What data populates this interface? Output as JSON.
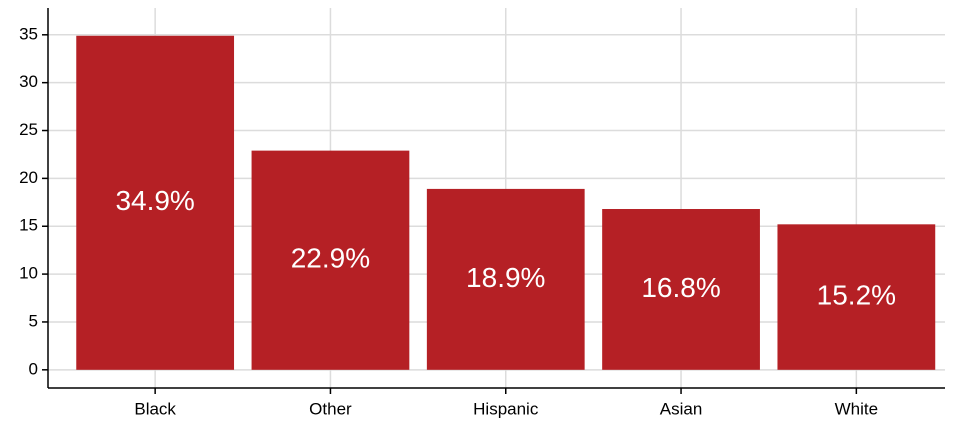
{
  "chart_data": {
    "type": "bar",
    "categories": [
      "Black",
      "Other",
      "Hispanic",
      "Asian",
      "White"
    ],
    "values": [
      34.9,
      22.9,
      18.9,
      16.8,
      15.2
    ],
    "value_labels": [
      "34.9%",
      "22.9%",
      "18.9%",
      "16.8%",
      "15.2%"
    ],
    "color": "#b52025",
    "ylim": [
      -1.9,
      37.8
    ],
    "yticks": [
      0,
      5,
      10,
      15,
      20,
      25,
      30,
      35
    ],
    "grid": true
  }
}
